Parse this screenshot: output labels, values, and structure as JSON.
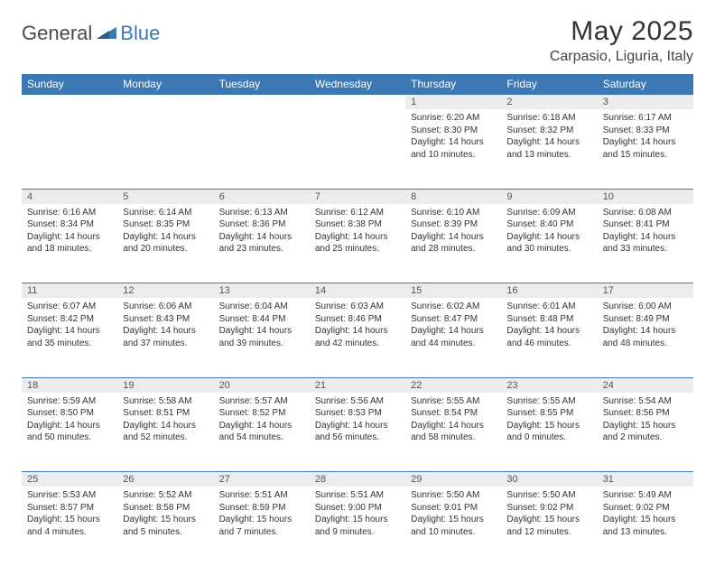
{
  "brand": {
    "part1": "General",
    "part2": "Blue"
  },
  "title": "May 2025",
  "location": "Carpasio, Liguria, Italy",
  "colors": {
    "header_bg": "#3c78b4",
    "header_fg": "#ffffff",
    "daynum_bg": "#ececec",
    "border": "#3c78b4",
    "text": "#333333",
    "brand_grey": "#4a4a4a",
    "brand_blue": "#3c78b4"
  },
  "day_headers": [
    "Sunday",
    "Monday",
    "Tuesday",
    "Wednesday",
    "Thursday",
    "Friday",
    "Saturday"
  ],
  "weeks": [
    [
      {
        "n": "",
        "sunrise": "",
        "sunset": "",
        "day": ""
      },
      {
        "n": "",
        "sunrise": "",
        "sunset": "",
        "day": ""
      },
      {
        "n": "",
        "sunrise": "",
        "sunset": "",
        "day": ""
      },
      {
        "n": "",
        "sunrise": "",
        "sunset": "",
        "day": ""
      },
      {
        "n": "1",
        "sunrise": "Sunrise: 6:20 AM",
        "sunset": "Sunset: 8:30 PM",
        "day": "Daylight: 14 hours and 10 minutes."
      },
      {
        "n": "2",
        "sunrise": "Sunrise: 6:18 AM",
        "sunset": "Sunset: 8:32 PM",
        "day": "Daylight: 14 hours and 13 minutes."
      },
      {
        "n": "3",
        "sunrise": "Sunrise: 6:17 AM",
        "sunset": "Sunset: 8:33 PM",
        "day": "Daylight: 14 hours and 15 minutes."
      }
    ],
    [
      {
        "n": "4",
        "sunrise": "Sunrise: 6:16 AM",
        "sunset": "Sunset: 8:34 PM",
        "day": "Daylight: 14 hours and 18 minutes."
      },
      {
        "n": "5",
        "sunrise": "Sunrise: 6:14 AM",
        "sunset": "Sunset: 8:35 PM",
        "day": "Daylight: 14 hours and 20 minutes."
      },
      {
        "n": "6",
        "sunrise": "Sunrise: 6:13 AM",
        "sunset": "Sunset: 8:36 PM",
        "day": "Daylight: 14 hours and 23 minutes."
      },
      {
        "n": "7",
        "sunrise": "Sunrise: 6:12 AM",
        "sunset": "Sunset: 8:38 PM",
        "day": "Daylight: 14 hours and 25 minutes."
      },
      {
        "n": "8",
        "sunrise": "Sunrise: 6:10 AM",
        "sunset": "Sunset: 8:39 PM",
        "day": "Daylight: 14 hours and 28 minutes."
      },
      {
        "n": "9",
        "sunrise": "Sunrise: 6:09 AM",
        "sunset": "Sunset: 8:40 PM",
        "day": "Daylight: 14 hours and 30 minutes."
      },
      {
        "n": "10",
        "sunrise": "Sunrise: 6:08 AM",
        "sunset": "Sunset: 8:41 PM",
        "day": "Daylight: 14 hours and 33 minutes."
      }
    ],
    [
      {
        "n": "11",
        "sunrise": "Sunrise: 6:07 AM",
        "sunset": "Sunset: 8:42 PM",
        "day": "Daylight: 14 hours and 35 minutes."
      },
      {
        "n": "12",
        "sunrise": "Sunrise: 6:06 AM",
        "sunset": "Sunset: 8:43 PM",
        "day": "Daylight: 14 hours and 37 minutes."
      },
      {
        "n": "13",
        "sunrise": "Sunrise: 6:04 AM",
        "sunset": "Sunset: 8:44 PM",
        "day": "Daylight: 14 hours and 39 minutes."
      },
      {
        "n": "14",
        "sunrise": "Sunrise: 6:03 AM",
        "sunset": "Sunset: 8:46 PM",
        "day": "Daylight: 14 hours and 42 minutes."
      },
      {
        "n": "15",
        "sunrise": "Sunrise: 6:02 AM",
        "sunset": "Sunset: 8:47 PM",
        "day": "Daylight: 14 hours and 44 minutes."
      },
      {
        "n": "16",
        "sunrise": "Sunrise: 6:01 AM",
        "sunset": "Sunset: 8:48 PM",
        "day": "Daylight: 14 hours and 46 minutes."
      },
      {
        "n": "17",
        "sunrise": "Sunrise: 6:00 AM",
        "sunset": "Sunset: 8:49 PM",
        "day": "Daylight: 14 hours and 48 minutes."
      }
    ],
    [
      {
        "n": "18",
        "sunrise": "Sunrise: 5:59 AM",
        "sunset": "Sunset: 8:50 PM",
        "day": "Daylight: 14 hours and 50 minutes."
      },
      {
        "n": "19",
        "sunrise": "Sunrise: 5:58 AM",
        "sunset": "Sunset: 8:51 PM",
        "day": "Daylight: 14 hours and 52 minutes."
      },
      {
        "n": "20",
        "sunrise": "Sunrise: 5:57 AM",
        "sunset": "Sunset: 8:52 PM",
        "day": "Daylight: 14 hours and 54 minutes."
      },
      {
        "n": "21",
        "sunrise": "Sunrise: 5:56 AM",
        "sunset": "Sunset: 8:53 PM",
        "day": "Daylight: 14 hours and 56 minutes."
      },
      {
        "n": "22",
        "sunrise": "Sunrise: 5:55 AM",
        "sunset": "Sunset: 8:54 PM",
        "day": "Daylight: 14 hours and 58 minutes."
      },
      {
        "n": "23",
        "sunrise": "Sunrise: 5:55 AM",
        "sunset": "Sunset: 8:55 PM",
        "day": "Daylight: 15 hours and 0 minutes."
      },
      {
        "n": "24",
        "sunrise": "Sunrise: 5:54 AM",
        "sunset": "Sunset: 8:56 PM",
        "day": "Daylight: 15 hours and 2 minutes."
      }
    ],
    [
      {
        "n": "25",
        "sunrise": "Sunrise: 5:53 AM",
        "sunset": "Sunset: 8:57 PM",
        "day": "Daylight: 15 hours and 4 minutes."
      },
      {
        "n": "26",
        "sunrise": "Sunrise: 5:52 AM",
        "sunset": "Sunset: 8:58 PM",
        "day": "Daylight: 15 hours and 5 minutes."
      },
      {
        "n": "27",
        "sunrise": "Sunrise: 5:51 AM",
        "sunset": "Sunset: 8:59 PM",
        "day": "Daylight: 15 hours and 7 minutes."
      },
      {
        "n": "28",
        "sunrise": "Sunrise: 5:51 AM",
        "sunset": "Sunset: 9:00 PM",
        "day": "Daylight: 15 hours and 9 minutes."
      },
      {
        "n": "29",
        "sunrise": "Sunrise: 5:50 AM",
        "sunset": "Sunset: 9:01 PM",
        "day": "Daylight: 15 hours and 10 minutes."
      },
      {
        "n": "30",
        "sunrise": "Sunrise: 5:50 AM",
        "sunset": "Sunset: 9:02 PM",
        "day": "Daylight: 15 hours and 12 minutes."
      },
      {
        "n": "31",
        "sunrise": "Sunrise: 5:49 AM",
        "sunset": "Sunset: 9:02 PM",
        "day": "Daylight: 15 hours and 13 minutes."
      }
    ]
  ]
}
